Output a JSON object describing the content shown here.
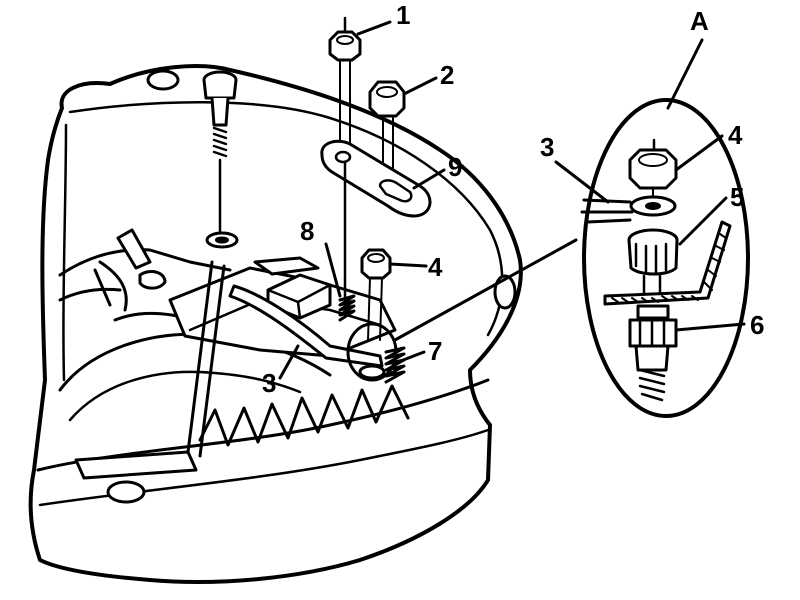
{
  "callouts": {
    "label_1": "1",
    "label_2": "2",
    "label_3_main": "3",
    "label_4_main": "4",
    "label_7": "7",
    "label_8": "8",
    "label_9": "9",
    "label_A": "A",
    "label_3_detail": "3",
    "label_4_detail": "4",
    "label_5": "5",
    "label_6": "6"
  },
  "colors": {
    "ink": "#000000",
    "paper": "#ffffff"
  }
}
